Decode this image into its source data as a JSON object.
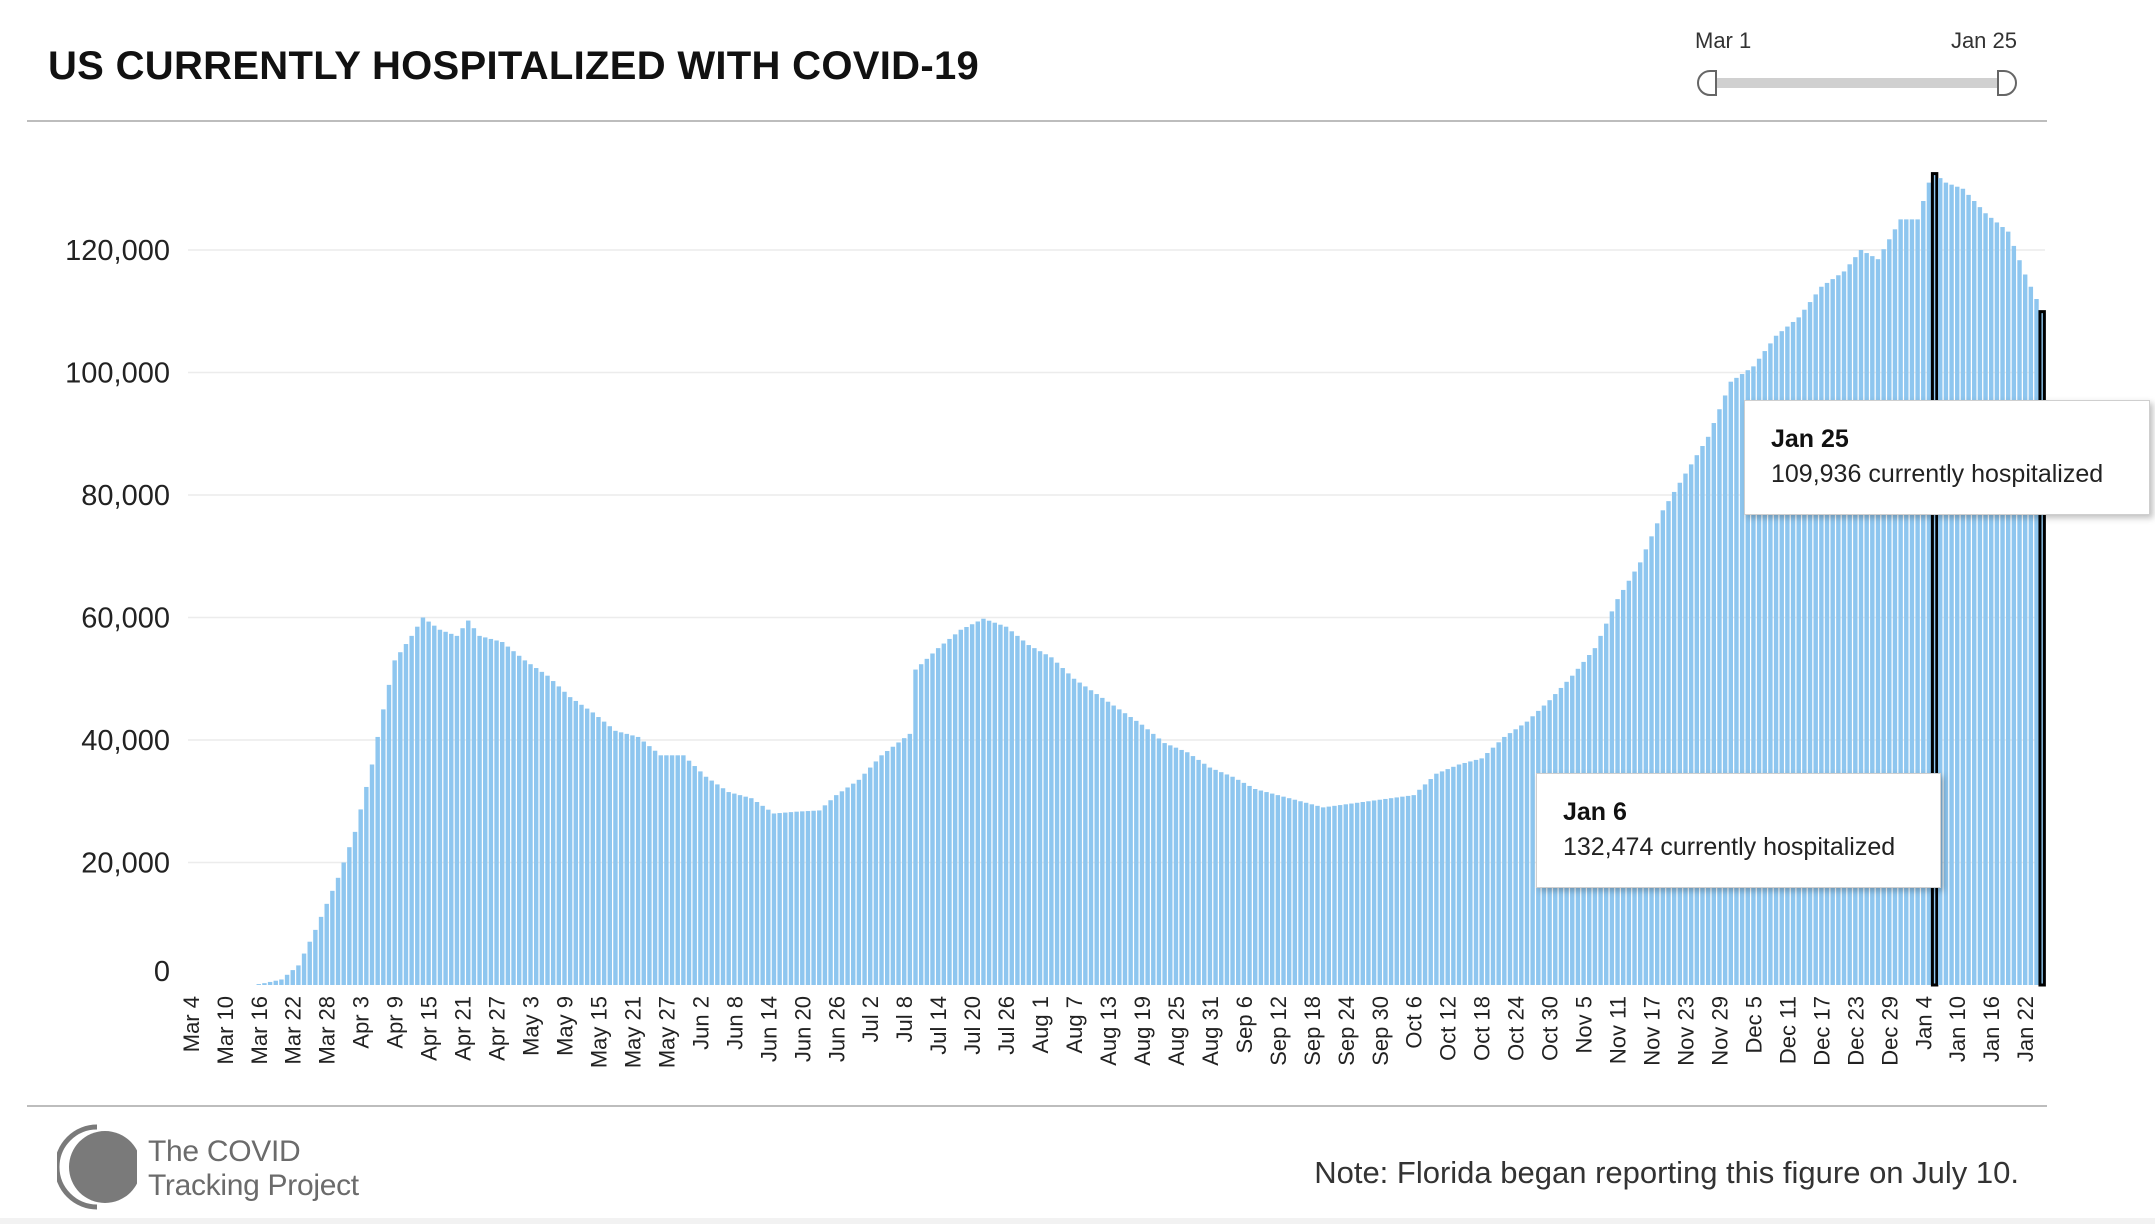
{
  "title": "US CURRENTLY HOSPITALIZED WITH COVID-19",
  "slider": {
    "start_label": "Mar 1",
    "end_label": "Jan 25"
  },
  "chart_data": {
    "type": "bar",
    "start_date": "2020-03-04",
    "end_date": "2021-01-25",
    "ylim": [
      0,
      135000
    ],
    "yticks": [
      0,
      20000,
      40000,
      60000,
      80000,
      100000,
      120000
    ],
    "ytick_labels": [
      "0",
      "20,000",
      "40,000",
      "60,000",
      "80,000",
      "100,000",
      "120,000"
    ],
    "xtick_labels": [
      "Mar 4",
      "Mar 10",
      "Mar 16",
      "Mar 22",
      "Mar 28",
      "Apr 3",
      "Apr 9",
      "Apr 15",
      "Apr 21",
      "Apr 27",
      "May 3",
      "May 9",
      "May 15",
      "May 21",
      "May 27",
      "Jun 2",
      "Jun 8",
      "Jun 14",
      "Jun 20",
      "Jun 26",
      "Jul 2",
      "Jul 8",
      "Jul 14",
      "Jul 20",
      "Jul 26",
      "Aug 1",
      "Aug 7",
      "Aug 13",
      "Aug 19",
      "Aug 25",
      "Aug 31",
      "Sep 6",
      "Sep 12",
      "Sep 18",
      "Sep 24",
      "Sep 30",
      "Oct 6",
      "Oct 12",
      "Oct 18",
      "Oct 24",
      "Oct 30",
      "Nov 5",
      "Nov 11",
      "Nov 17",
      "Nov 23",
      "Nov 29",
      "Dec 5",
      "Dec 11",
      "Dec 17",
      "Dec 23",
      "Dec 29",
      "Jan 4",
      "Jan 10",
      "Jan 16",
      "Jan 22"
    ],
    "bar_color": "#8ec6ef",
    "highlight_color": "#000000",
    "highlighted": [
      "2021-01-06",
      "2021-01-25"
    ],
    "anchor_points": [
      [
        "2020-03-04",
        0
      ],
      [
        "2020-03-15",
        0
      ],
      [
        "2020-03-17",
        300
      ],
      [
        "2020-03-20",
        900
      ],
      [
        "2020-03-23",
        3200
      ],
      [
        "2020-03-26",
        9000
      ],
      [
        "2020-03-30",
        17500
      ],
      [
        "2020-04-02",
        25000
      ],
      [
        "2020-04-05",
        36000
      ],
      [
        "2020-04-07",
        45000
      ],
      [
        "2020-04-09",
        53000
      ],
      [
        "2020-04-12",
        57000
      ],
      [
        "2020-04-14",
        60000
      ],
      [
        "2020-04-17",
        58000
      ],
      [
        "2020-04-20",
        57000
      ],
      [
        "2020-04-22",
        59500
      ],
      [
        "2020-04-24",
        57000
      ],
      [
        "2020-04-28",
        56000
      ],
      [
        "2020-05-02",
        53000
      ],
      [
        "2020-05-06",
        50500
      ],
      [
        "2020-05-10",
        47000
      ],
      [
        "2020-05-14",
        44500
      ],
      [
        "2020-05-18",
        41500
      ],
      [
        "2020-05-22",
        40500
      ],
      [
        "2020-05-26",
        37500
      ],
      [
        "2020-05-30",
        37500
      ],
      [
        "2020-06-03",
        34000
      ],
      [
        "2020-06-07",
        31500
      ],
      [
        "2020-06-11",
        30500
      ],
      [
        "2020-06-15",
        28000
      ],
      [
        "2020-06-19",
        28300
      ],
      [
        "2020-06-23",
        28500
      ],
      [
        "2020-06-26",
        31000
      ],
      [
        "2020-06-30",
        33500
      ],
      [
        "2020-07-04",
        37500
      ],
      [
        "2020-07-09",
        41000
      ],
      [
        "2020-07-10",
        51500
      ],
      [
        "2020-07-14",
        55000
      ],
      [
        "2020-07-18",
        58000
      ],
      [
        "2020-07-22",
        59800
      ],
      [
        "2020-07-26",
        58500
      ],
      [
        "2020-07-30",
        55500
      ],
      [
        "2020-08-03",
        53500
      ],
      [
        "2020-08-07",
        50000
      ],
      [
        "2020-08-11",
        47500
      ],
      [
        "2020-08-15",
        45000
      ],
      [
        "2020-08-19",
        42500
      ],
      [
        "2020-08-23",
        39500
      ],
      [
        "2020-08-27",
        38000
      ],
      [
        "2020-08-31",
        35500
      ],
      [
        "2020-09-04",
        34000
      ],
      [
        "2020-09-08",
        32000
      ],
      [
        "2020-09-12",
        31000
      ],
      [
        "2020-09-16",
        30000
      ],
      [
        "2020-09-20",
        29000
      ],
      [
        "2020-09-24",
        29500
      ],
      [
        "2020-09-28",
        30000
      ],
      [
        "2020-10-02",
        30500
      ],
      [
        "2020-10-06",
        31000
      ],
      [
        "2020-10-10",
        34500
      ],
      [
        "2020-10-14",
        36000
      ],
      [
        "2020-10-18",
        37000
      ],
      [
        "2020-10-22",
        40500
      ],
      [
        "2020-10-26",
        43000
      ],
      [
        "2020-10-30",
        46500
      ],
      [
        "2020-11-03",
        50500
      ],
      [
        "2020-11-07",
        55000
      ],
      [
        "2020-11-11",
        63000
      ],
      [
        "2020-11-15",
        69000
      ],
      [
        "2020-11-19",
        77500
      ],
      [
        "2020-11-23",
        83500
      ],
      [
        "2020-11-27",
        89500
      ],
      [
        "2020-12-01",
        98500
      ],
      [
        "2020-12-05",
        101000
      ],
      [
        "2020-12-09",
        106000
      ],
      [
        "2020-12-13",
        109000
      ],
      [
        "2020-12-17",
        114000
      ],
      [
        "2020-12-21",
        116500
      ],
      [
        "2020-12-24",
        120000
      ],
      [
        "2020-12-27",
        118500
      ],
      [
        "2020-12-31",
        125000
      ],
      [
        "2021-01-03",
        125000
      ],
      [
        "2021-01-05",
        131000
      ],
      [
        "2021-01-06",
        132474
      ],
      [
        "2021-01-08",
        131000
      ],
      [
        "2021-01-11",
        130000
      ],
      [
        "2021-01-15",
        126000
      ],
      [
        "2021-01-19",
        123000
      ],
      [
        "2021-01-22",
        116000
      ],
      [
        "2021-01-24",
        112000
      ],
      [
        "2021-01-25",
        109936
      ]
    ]
  },
  "tooltips": [
    {
      "date": "Jan 25",
      "text": "109,936 currently hospitalized"
    },
    {
      "date": "Jan 6",
      "text": "132,474 currently hospitalized"
    }
  ],
  "logo": {
    "line1": "The COVID",
    "line2": "Tracking Project"
  },
  "note": "Note: Florida began reporting this figure on July 10."
}
